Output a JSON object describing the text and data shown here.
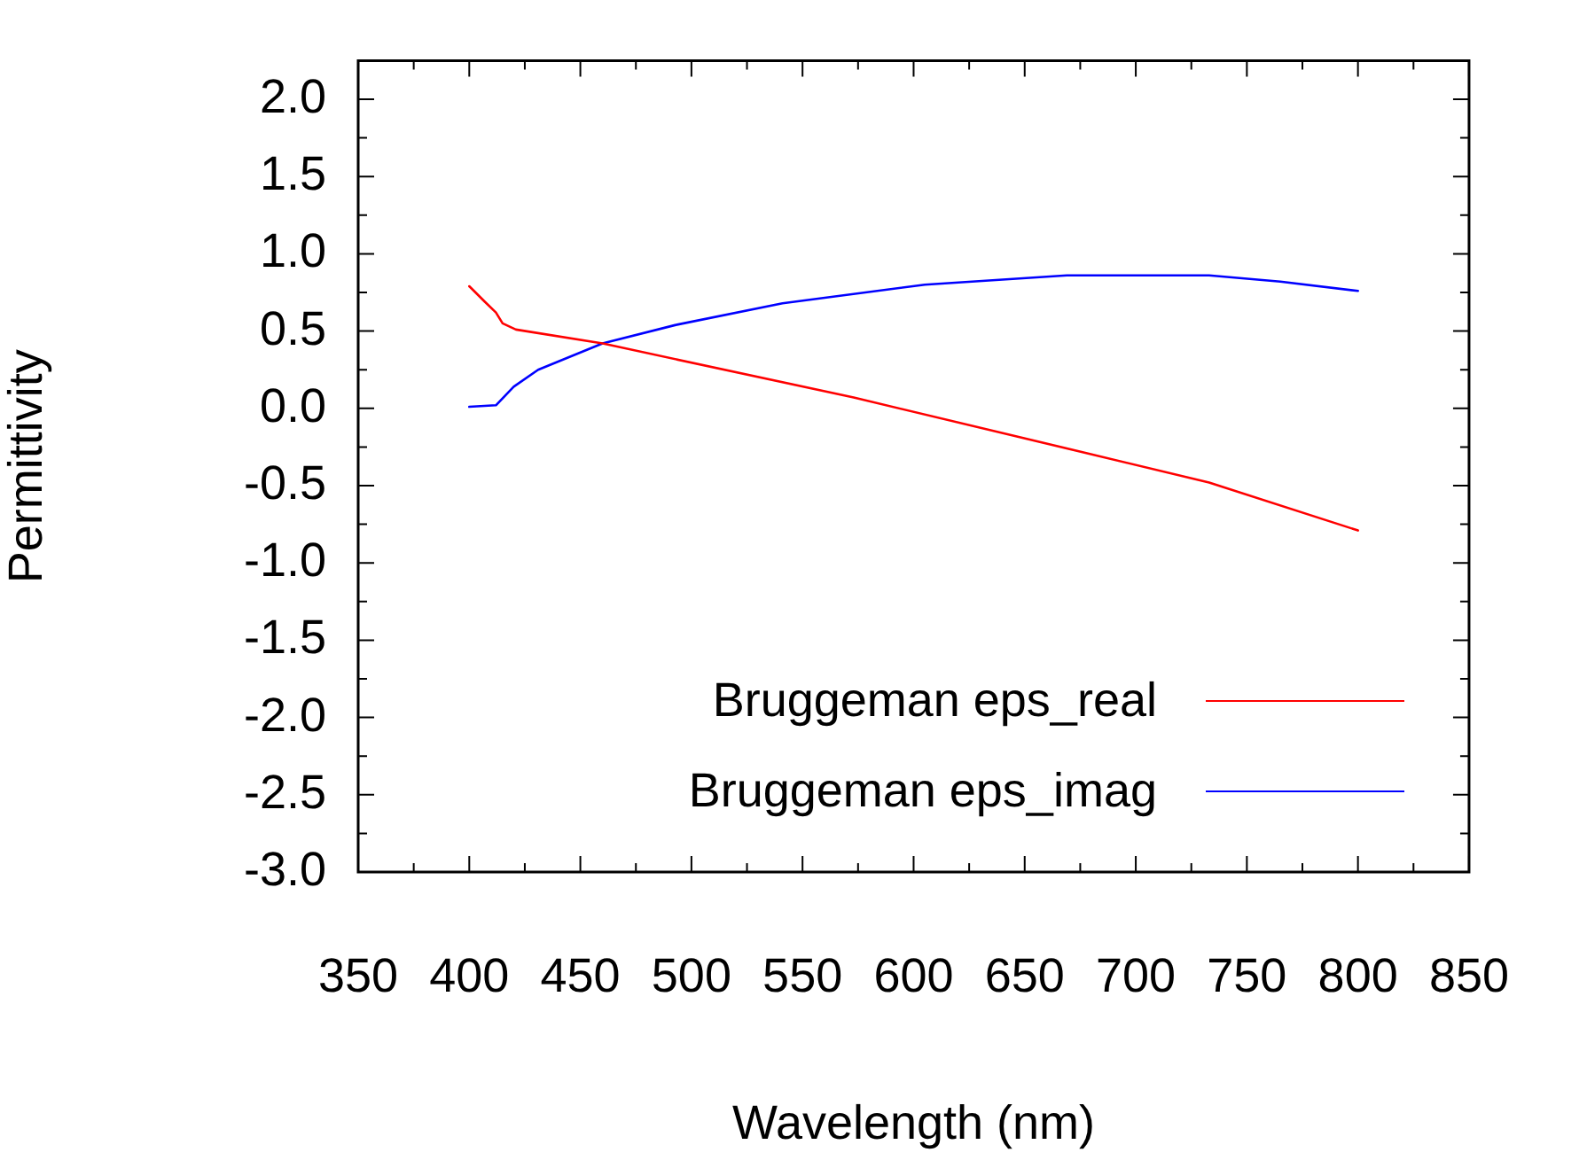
{
  "chart_data": {
    "type": "line",
    "xlabel": "Wavelength (nm)",
    "ylabel": "Permittivity",
    "xlim": [
      350,
      850
    ],
    "xticks": [
      350,
      {
        "value": 375,
        "label": null
      },
      400,
      {
        "value": 425,
        "label": null
      },
      450,
      {
        "value": 475,
        "label": null
      },
      500,
      {
        "value": 525,
        "label": null
      },
      550,
      {
        "value": 575,
        "label": null
      },
      600,
      {
        "value": 625,
        "label": null
      },
      650,
      {
        "value": 675,
        "label": null
      },
      700,
      {
        "value": 725,
        "label": null
      },
      750,
      {
        "value": 775,
        "label": null
      },
      800,
      {
        "value": 825,
        "label": null
      },
      850
    ],
    "ylim": [
      -3.0,
      2.25
    ],
    "yticks": [
      {
        "value": -3,
        "label": "-3.0"
      },
      {
        "value": -2.75,
        "label": null
      },
      {
        "value": -2.5,
        "label": "-2.5"
      },
      {
        "value": -2.25,
        "label": null
      },
      {
        "value": -2,
        "label": "-2.0"
      },
      {
        "value": -1.75,
        "label": null
      },
      {
        "value": -1.5,
        "label": "-1.5"
      },
      {
        "value": -1.25,
        "label": null
      },
      {
        "value": -1,
        "label": "-1.0"
      },
      {
        "value": -0.75,
        "label": null
      },
      {
        "value": -0.5,
        "label": "-0.5"
      },
      {
        "value": -0.25,
        "label": null
      },
      {
        "value": 0,
        "label": "0.0"
      },
      {
        "value": 0.25,
        "label": null
      },
      {
        "value": 0.5,
        "label": "0.5"
      },
      {
        "value": 0.75,
        "label": null
      },
      {
        "value": 1,
        "label": "1.0"
      },
      {
        "value": 1.25,
        "label": null
      },
      {
        "value": 1.5,
        "label": "1.5"
      },
      {
        "value": 1.75,
        "label": null
      },
      {
        "value": 2,
        "label": "2.0"
      },
      {
        "value": 2.25,
        "label": null
      }
    ],
    "grid": false,
    "legend": "bottom right",
    "marker": "none",
    "line_style": "solid",
    "series": [
      {
        "name": "Bruggeman eps_real",
        "color": "#ff0000",
        "x": [
          400,
          407,
          412,
          415,
          421,
          460,
          573,
          646,
          733,
          800
        ],
        "values": [
          0.79,
          0.69,
          0.62,
          0.55,
          0.51,
          0.42,
          0.07,
          -0.18,
          -0.48,
          -0.79
        ]
      },
      {
        "name": "Bruggeman eps_imag",
        "color": "#0000ff",
        "x": [
          400,
          412,
          420,
          431,
          460,
          493,
          541,
          605,
          669,
          700,
          733,
          765,
          800
        ],
        "values": [
          0.01,
          0.02,
          0.14,
          0.25,
          0.42,
          0.54,
          0.68,
          0.8,
          0.86,
          0.86,
          0.86,
          0.82,
          0.76
        ]
      }
    ]
  }
}
